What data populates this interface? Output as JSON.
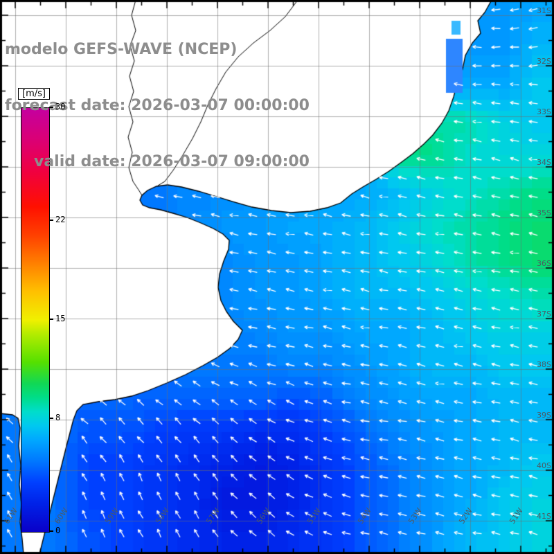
{
  "header": {
    "line1": "modelo GEFS-WAVE (NCEP)",
    "line2": "forecast date: 2026-03-07 00:00:00",
    "line3": "valid date: 2026-03-07 09:00:00"
  },
  "colorbar": {
    "label": "[m/s]",
    "min": 0,
    "max": 30,
    "ticks": [
      30,
      22,
      15,
      8,
      0
    ]
  },
  "axes": {
    "lat_labels": [
      "31S",
      "32S",
      "33S",
      "34S",
      "35S",
      "36S",
      "37S",
      "38S",
      "39S",
      "40S",
      "41S"
    ],
    "lon_labels": [
      "61W",
      "60W",
      "59W",
      "58W",
      "57W",
      "56W",
      "55W",
      "54W",
      "53W",
      "52W",
      "51W"
    ]
  },
  "chart_data": {
    "type": "heatmap",
    "title": "modelo GEFS-WAVE (NCEP)",
    "forecast_date": "2026-03-07 00:00:00",
    "valid_date": "2026-03-07 09:00:00",
    "units": "m/s",
    "value_range": [
      0,
      30
    ],
    "colorbar_ticks": [
      30,
      22,
      15,
      8,
      0
    ],
    "colormap_stops": [
      {
        "value": 0,
        "color": "#0a00c8"
      },
      {
        "value": 2,
        "color": "#0022e8"
      },
      {
        "value": 3.5,
        "color": "#0040ff"
      },
      {
        "value": 5,
        "color": "#0078ff"
      },
      {
        "value": 6.5,
        "color": "#00a8ff"
      },
      {
        "value": 7.5,
        "color": "#00c8f0"
      },
      {
        "value": 8.5,
        "color": "#00ddcc"
      },
      {
        "value": 9.5,
        "color": "#00dd88"
      },
      {
        "value": 10.5,
        "color": "#11d855"
      },
      {
        "value": 12,
        "color": "#55e000"
      },
      {
        "value": 14,
        "color": "#b4ec00"
      },
      {
        "value": 15,
        "color": "#f0f000"
      },
      {
        "value": 17,
        "color": "#ffc000"
      },
      {
        "value": 19,
        "color": "#ff8000"
      },
      {
        "value": 21,
        "color": "#ff4000"
      },
      {
        "value": 23,
        "color": "#ff1000"
      },
      {
        "value": 25.5,
        "color": "#f00040"
      },
      {
        "value": 27.5,
        "color": "#dd0070"
      },
      {
        "value": 30,
        "color": "#c400a0"
      }
    ],
    "grid_cols": 16,
    "grid_rows": 16,
    "values_mps": [
      [
        null,
        null,
        null,
        null,
        null,
        null,
        null,
        null,
        null,
        null,
        null,
        null,
        null,
        null,
        6,
        6.5
      ],
      [
        null,
        null,
        null,
        null,
        null,
        null,
        null,
        null,
        null,
        null,
        null,
        null,
        null,
        null,
        6,
        7
      ],
      [
        null,
        null,
        null,
        null,
        null,
        null,
        null,
        null,
        null,
        null,
        null,
        null,
        null,
        6.5,
        6.5,
        7.5
      ],
      [
        null,
        null,
        null,
        null,
        null,
        null,
        null,
        null,
        null,
        null,
        null,
        null,
        null,
        9,
        8,
        7.5
      ],
      [
        null,
        null,
        null,
        null,
        null,
        null,
        null,
        null,
        null,
        null,
        null,
        null,
        9.5,
        8.5,
        8,
        8
      ],
      [
        null,
        null,
        null,
        null,
        5,
        5.5,
        5.5,
        6,
        6,
        6.5,
        6.5,
        7,
        8,
        8.5,
        9,
        9.5
      ],
      [
        null,
        null,
        null,
        null,
        null,
        5.5,
        6,
        6,
        6.5,
        6.5,
        7,
        7.5,
        8.5,
        9,
        9.5,
        10
      ],
      [
        null,
        null,
        null,
        null,
        null,
        null,
        5.5,
        6,
        6,
        6.5,
        7,
        7.5,
        8,
        9,
        9.5,
        10
      ],
      [
        null,
        null,
        null,
        null,
        null,
        null,
        5.5,
        6,
        6,
        6.5,
        7,
        7,
        7.5,
        8,
        8.5,
        9
      ],
      [
        null,
        null,
        null,
        null,
        null,
        null,
        null,
        5.5,
        6,
        6,
        6.5,
        6.5,
        7,
        7.5,
        8,
        8
      ],
      [
        null,
        null,
        null,
        null,
        null,
        null,
        5,
        5,
        5.5,
        5.5,
        6,
        6.5,
        7,
        7,
        7.5,
        7.5
      ],
      [
        null,
        null,
        null,
        4.5,
        4.5,
        4.5,
        4.5,
        4.5,
        4,
        4.5,
        5.5,
        6,
        6.5,
        6.5,
        7,
        7
      ],
      [
        5,
        null,
        4,
        4,
        3.5,
        3,
        3,
        2.5,
        2.5,
        3.5,
        4.5,
        5.5,
        6,
        6.5,
        7,
        7
      ],
      [
        5,
        null,
        3.5,
        3.5,
        3,
        2.5,
        2,
        1.5,
        2,
        3,
        4,
        5,
        6,
        6.5,
        7,
        7.5
      ],
      [
        5,
        null,
        3.5,
        3.5,
        3,
        2.5,
        1.5,
        1.5,
        2,
        3,
        4,
        5,
        6,
        6.5,
        7.5,
        8
      ],
      [
        5,
        null,
        4,
        3.5,
        3,
        2.5,
        2,
        2,
        2.5,
        3,
        4,
        5,
        6,
        7,
        7.5,
        8
      ]
    ],
    "arrows": {
      "color": "#ffffff",
      "meaning": "wave direction vectors",
      "base_angle_deg": 168,
      "southwest_angle_deg": 118,
      "topright_extra_deg": 28
    }
  }
}
